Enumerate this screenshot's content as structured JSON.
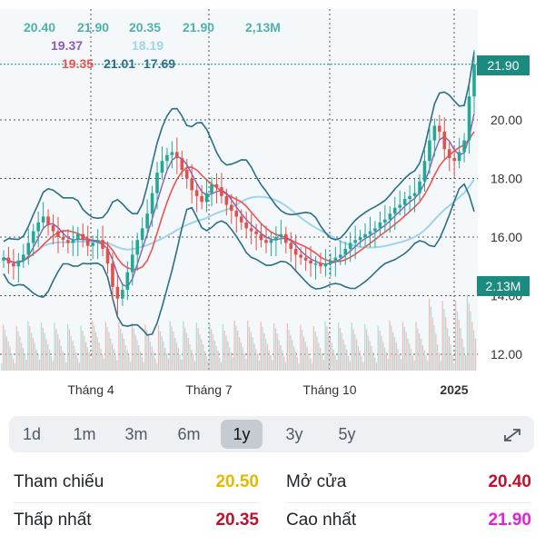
{
  "chart_data": {
    "type": "candlestick",
    "ohlc_header": {
      "line1": [
        "20.40",
        "21.90",
        "20.35",
        "21.90",
        "2,13M"
      ],
      "line2": [
        "19.37",
        "18.19"
      ],
      "line3": [
        "19.35",
        "21.01",
        "17.69"
      ]
    },
    "y_axis_ticks": [
      "12.00",
      "14.00",
      "16.00",
      "18.00",
      "20.00"
    ],
    "ylim": [
      11.5,
      23.5
    ],
    "x_axis_ticks": [
      "Tháng 4",
      "Tháng 7",
      "Tháng 10",
      "2025"
    ],
    "last_price_label": "21.90",
    "last_price": 21.9,
    "volume_label": "2.13M",
    "close_series": [
      15.3,
      15.1,
      15.0,
      15.2,
      15.4,
      15.8,
      16.2,
      16.5,
      16.7,
      16.4,
      16.2,
      16.0,
      15.9,
      15.8,
      15.9,
      16.1,
      15.9,
      15.7,
      15.8,
      15.9,
      15.6,
      15.1,
      14.3,
      13.9,
      14.2,
      14.8,
      15.4,
      15.9,
      16.3,
      16.8,
      17.5,
      18.2,
      18.6,
      18.8,
      18.9,
      18.7,
      18.3,
      18.0,
      17.6,
      17.4,
      17.2,
      17.5,
      17.8,
      17.7,
      17.4,
      17.1,
      16.9,
      16.7,
      16.5,
      16.3,
      16.2,
      16.1,
      15.9,
      15.8,
      15.9,
      16.0,
      16.1,
      15.8,
      15.6,
      15.4,
      15.3,
      15.2,
      15.1,
      15.1,
      15.0,
      15.1,
      15.2,
      15.3,
      15.4,
      15.6,
      15.8,
      15.9,
      16.0,
      16.1,
      16.2,
      16.3,
      16.5,
      16.6,
      16.8,
      17.0,
      17.1,
      17.3,
      17.4,
      17.5,
      17.9,
      18.6,
      19.3,
      19.8,
      19.6,
      19.0,
      18.7,
      18.6,
      18.9,
      19.3,
      20.8,
      21.9
    ]
  },
  "period_tabs": [
    "1d",
    "1m",
    "3m",
    "6m",
    "1y",
    "3y",
    "5y"
  ],
  "active_tab": "1y",
  "expand_icon": "expand-arrows-icon",
  "stats": {
    "reference_label": "Tham chiếu",
    "reference_value": "20.50",
    "open_label": "Mở cửa",
    "open_value": "20.40",
    "low_label": "Thấp nhất",
    "low_value": "20.35",
    "high_label": "Cao nhất",
    "high_value": "21.90"
  },
  "colors": {
    "reference": "#e6b800",
    "open": "#c0102a",
    "low": "#c0102a",
    "high": "#e81fd8",
    "bollinger": "#2a6f86",
    "ma_red": "#ef5350",
    "ma_blue": "#9fd4ea",
    "ma_purple": "#8a5bb8",
    "up": "#22a896",
    "down": "#e0514b",
    "tag": "#1b8a7f"
  }
}
